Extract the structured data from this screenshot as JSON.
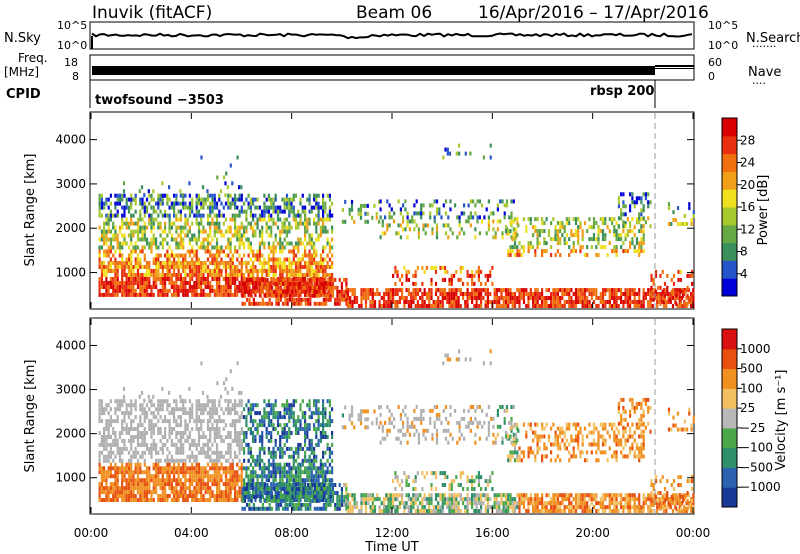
{
  "header": {
    "station": "Inuvik (fitACF)",
    "beam": "Beam 06",
    "date_range": "16/Apr/2016 – 17/Apr/2016"
  },
  "summary": {
    "nsky_label": "N.Sky",
    "nsearch_label": "N.Search",
    "nsearch_marker": "·······",
    "left_ticks": [
      "10^5",
      "10^0"
    ],
    "right_ticks": [
      "10^5",
      "10^0"
    ],
    "freq_label": "Freq.",
    "freq_unit": "[MHz]",
    "freq_ticks": [
      "18",
      "8"
    ],
    "nave_label": "Nave",
    "nave_marker": "····",
    "nave_ticks": [
      "60",
      "0"
    ],
    "cpid_label": "CPID",
    "cpid_program1": "twofsound −3503",
    "cpid_program2": "rbsp 200"
  },
  "axes": {
    "ylabel": "Slant Range [km]",
    "y_ticks": [
      "4000",
      "3000",
      "2000",
      "1000"
    ],
    "x_ticks": [
      "00:00",
      "04:00",
      "08:00",
      "12:00",
      "16:00",
      "20:00",
      "00:00"
    ],
    "xlabel": "Time UT"
  },
  "chart_data": [
    {
      "type": "heatmap",
      "name": "power",
      "x_hours": [
        0,
        24
      ],
      "ylim": [
        200,
        4600
      ],
      "colorbar": {
        "label": "Power [dB]",
        "ticks": [
          "28",
          "24",
          "20",
          "16",
          "12",
          "8",
          "4"
        ],
        "colors": [
          "#0000d8",
          "#2555c8",
          "#3a8f5a",
          "#66a844",
          "#a8c830",
          "#f0e020",
          "#f0a018",
          "#f07010",
          "#e83010",
          "#d80000"
        ]
      }
    },
    {
      "type": "heatmap",
      "name": "velocity",
      "x_hours": [
        0,
        24
      ],
      "ylim": [
        200,
        4600
      ],
      "colorbar": {
        "label": "Velocity [m s⁻¹]",
        "ticks": [
          "1000",
          "500",
          "100",
          "25",
          "−25",
          "−100",
          "−500",
          "−1000"
        ],
        "colors": [
          "#1a3a9a",
          "#2a62b0",
          "#2f8f6a",
          "#4aa84a",
          "#b8b8b8",
          "#f2c060",
          "#f09020",
          "#e85010",
          "#d81010"
        ]
      }
    }
  ],
  "palette": {
    "ground": "#b0b0b0",
    "trace": "#000000"
  }
}
